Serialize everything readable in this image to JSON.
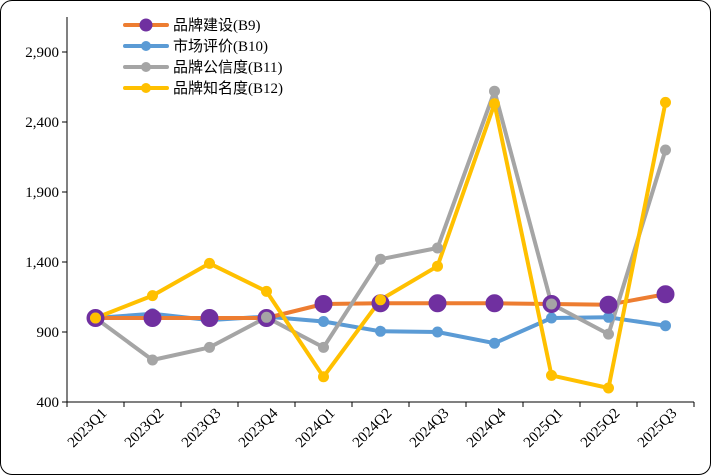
{
  "chart_data": {
    "type": "line",
    "title": "",
    "xlabel": "",
    "ylabel": "",
    "ylim": [
      400,
      3150
    ],
    "yticks": [
      400,
      900,
      1400,
      1900,
      2400,
      2900
    ],
    "ytick_labels": [
      "400",
      "900",
      "1,400",
      "1,900",
      "2,400",
      "2,900"
    ],
    "categories": [
      "2023Q1",
      "2023Q2",
      "2023Q3",
      "2023Q4",
      "2024Q1",
      "2024Q2",
      "2024Q3",
      "2024Q4",
      "2025Q1",
      "2025Q2",
      "2025Q3"
    ],
    "legend_position": "top-left",
    "series": [
      {
        "name": "品牌建设(B9)",
        "color": "#ED7D31",
        "marker_color": "#7030A0",
        "marker": "large-circle",
        "values": [
          1000,
          1000,
          1000,
          1000,
          1100,
          1105,
          1105,
          1105,
          1100,
          1095,
          1170
        ]
      },
      {
        "name": "市场评价(B10)",
        "color": "#5B9BD5",
        "marker_color": "#5B9BD5",
        "marker": "circle",
        "values": [
          1000,
          1030,
          985,
          1010,
          975,
          905,
          900,
          820,
          1000,
          1005,
          945
        ]
      },
      {
        "name": "品牌公信度(B11)",
        "color": "#A5A5A5",
        "marker_color": "#A5A5A5",
        "marker": "circle",
        "values": [
          1000,
          700,
          790,
          1005,
          790,
          1420,
          1500,
          2620,
          1100,
          885,
          2200
        ]
      },
      {
        "name": "品牌知名度(B12)",
        "color": "#FFC000",
        "marker_color": "#FFC000",
        "marker": "circle",
        "values": [
          1000,
          1160,
          1390,
          1190,
          580,
          1130,
          1370,
          2530,
          590,
          500,
          2540
        ]
      }
    ]
  }
}
